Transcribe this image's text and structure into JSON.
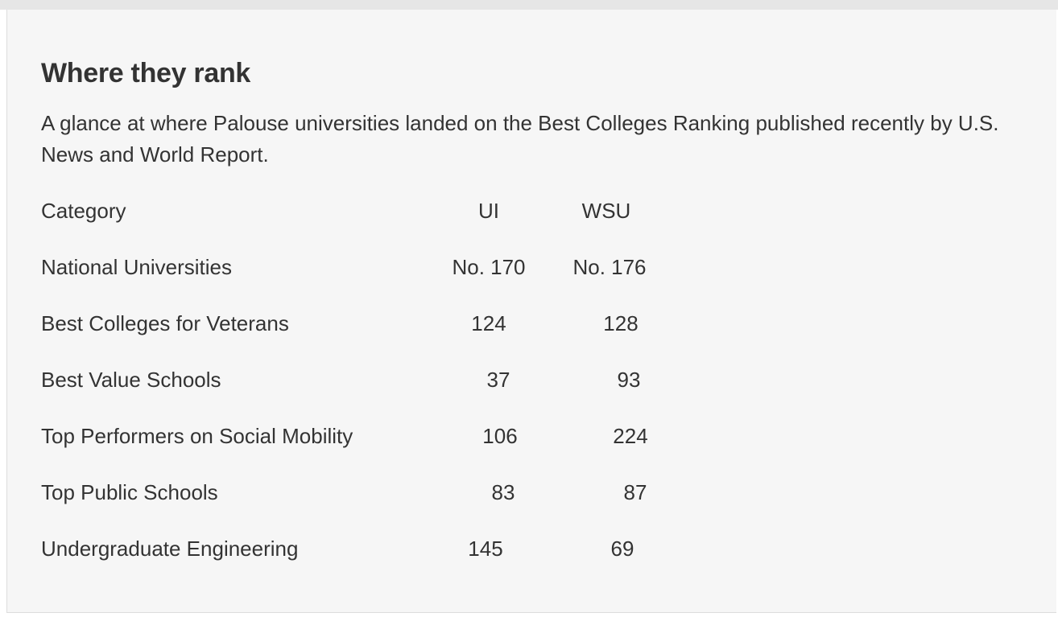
{
  "title": "Where they rank",
  "subtitle": "A glance at where Palouse universities landed on the Best Colleges Ranking published recently by U.S. News and World Report.",
  "table": {
    "headers": {
      "category": "Category",
      "ui": "UI",
      "wsu": "WSU"
    },
    "rows": [
      {
        "category": "National Universities",
        "ui": "No. 170",
        "wsu": "No. 176"
      },
      {
        "category": "Best Colleges for Veterans",
        "ui": "124",
        "wsu": "128"
      },
      {
        "category": "Best Value Schools",
        "ui": "37",
        "wsu": "93"
      },
      {
        "category": "Top Performers on Social Mobility",
        "ui": "106",
        "wsu": "224"
      },
      {
        "category": "Top Public Schools",
        "ui": "83",
        "wsu": "87"
      },
      {
        "category": "Undergraduate Engineering",
        "ui": "145",
        "wsu": "69"
      }
    ]
  }
}
